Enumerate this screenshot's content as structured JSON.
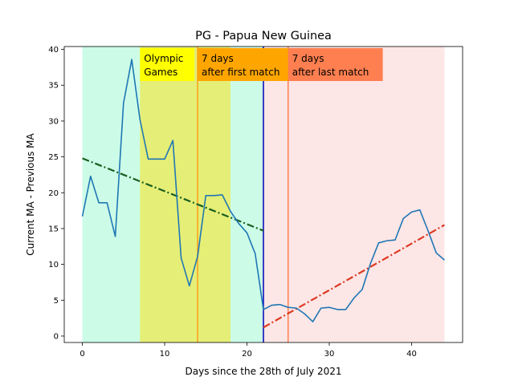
{
  "chart_data": {
    "type": "line",
    "title": "PG - Papua New Guinea",
    "xlabel": "Days since the 28th of July 2021",
    "ylabel": "Current MA - Previous MA",
    "xlim": [
      -2.2,
      46.2
    ],
    "ylim": [
      -0.9,
      40.4
    ],
    "xticks": [
      0,
      10,
      20,
      30,
      40
    ],
    "yticks": [
      0,
      5,
      10,
      15,
      20,
      25,
      30,
      35,
      40
    ],
    "grid": false,
    "series": [
      {
        "color": "#1f77b4",
        "x": [
          0,
          1,
          2,
          3,
          4,
          5,
          6,
          7,
          8,
          9,
          10,
          11,
          12,
          13,
          14,
          15,
          16,
          17,
          18,
          19,
          20,
          21,
          22,
          23,
          24,
          25,
          26,
          27,
          28,
          29,
          30,
          31,
          32,
          33,
          34,
          35,
          36,
          37,
          38,
          39,
          40,
          41,
          42,
          43,
          44
        ],
        "y": [
          16.7,
          22.3,
          18.6,
          18.6,
          13.9,
          32.5,
          38.6,
          30.2,
          24.7,
          24.7,
          24.7,
          27.3,
          10.9,
          7.0,
          11.1,
          19.6,
          19.6,
          19.7,
          17.4,
          15.7,
          14.4,
          11.5,
          3.7,
          4.3,
          4.4,
          4.0,
          3.9,
          3.1,
          2.0,
          3.9,
          4.0,
          3.7,
          3.7,
          5.3,
          6.5,
          10.1,
          13.0,
          13.3,
          13.4,
          16.4,
          17.3,
          17.6,
          14.7,
          11.6,
          10.6
        ]
      }
    ],
    "trend_lines": [
      {
        "style": "dash-dot",
        "color": "#1a5e20",
        "x": [
          0,
          22
        ],
        "y": [
          24.8,
          14.7
        ]
      },
      {
        "style": "dash-dot",
        "color": "#dd3a22",
        "x": [
          22,
          44
        ],
        "y": [
          1.2,
          15.5
        ]
      }
    ],
    "regions": [
      {
        "x": [
          0,
          22
        ],
        "color": "#ccfce8"
      },
      {
        "x": [
          22,
          44
        ],
        "color": "#fde6e6"
      },
      {
        "x": [
          7,
          18
        ],
        "color": "#e5ee76"
      }
    ],
    "vlines": [
      {
        "x": 14,
        "color": "#ff9f1a"
      },
      {
        "x": 22,
        "color": "#0000bb"
      },
      {
        "x": 25,
        "color": "#ff7f50"
      }
    ],
    "annotations": [
      {
        "text": [
          "Olympic",
          "Games"
        ],
        "x": 7,
        "bg": "#ffff00",
        "width_days": 6.6
      },
      {
        "text": [
          "7 days",
          "after first match"
        ],
        "x": 14,
        "bg": "#ffa500",
        "width_days": 11.0
      },
      {
        "text": [
          "7 days",
          "after last match"
        ],
        "x": 25,
        "bg": "#ff7f50",
        "width_days": 11.5
      }
    ]
  }
}
